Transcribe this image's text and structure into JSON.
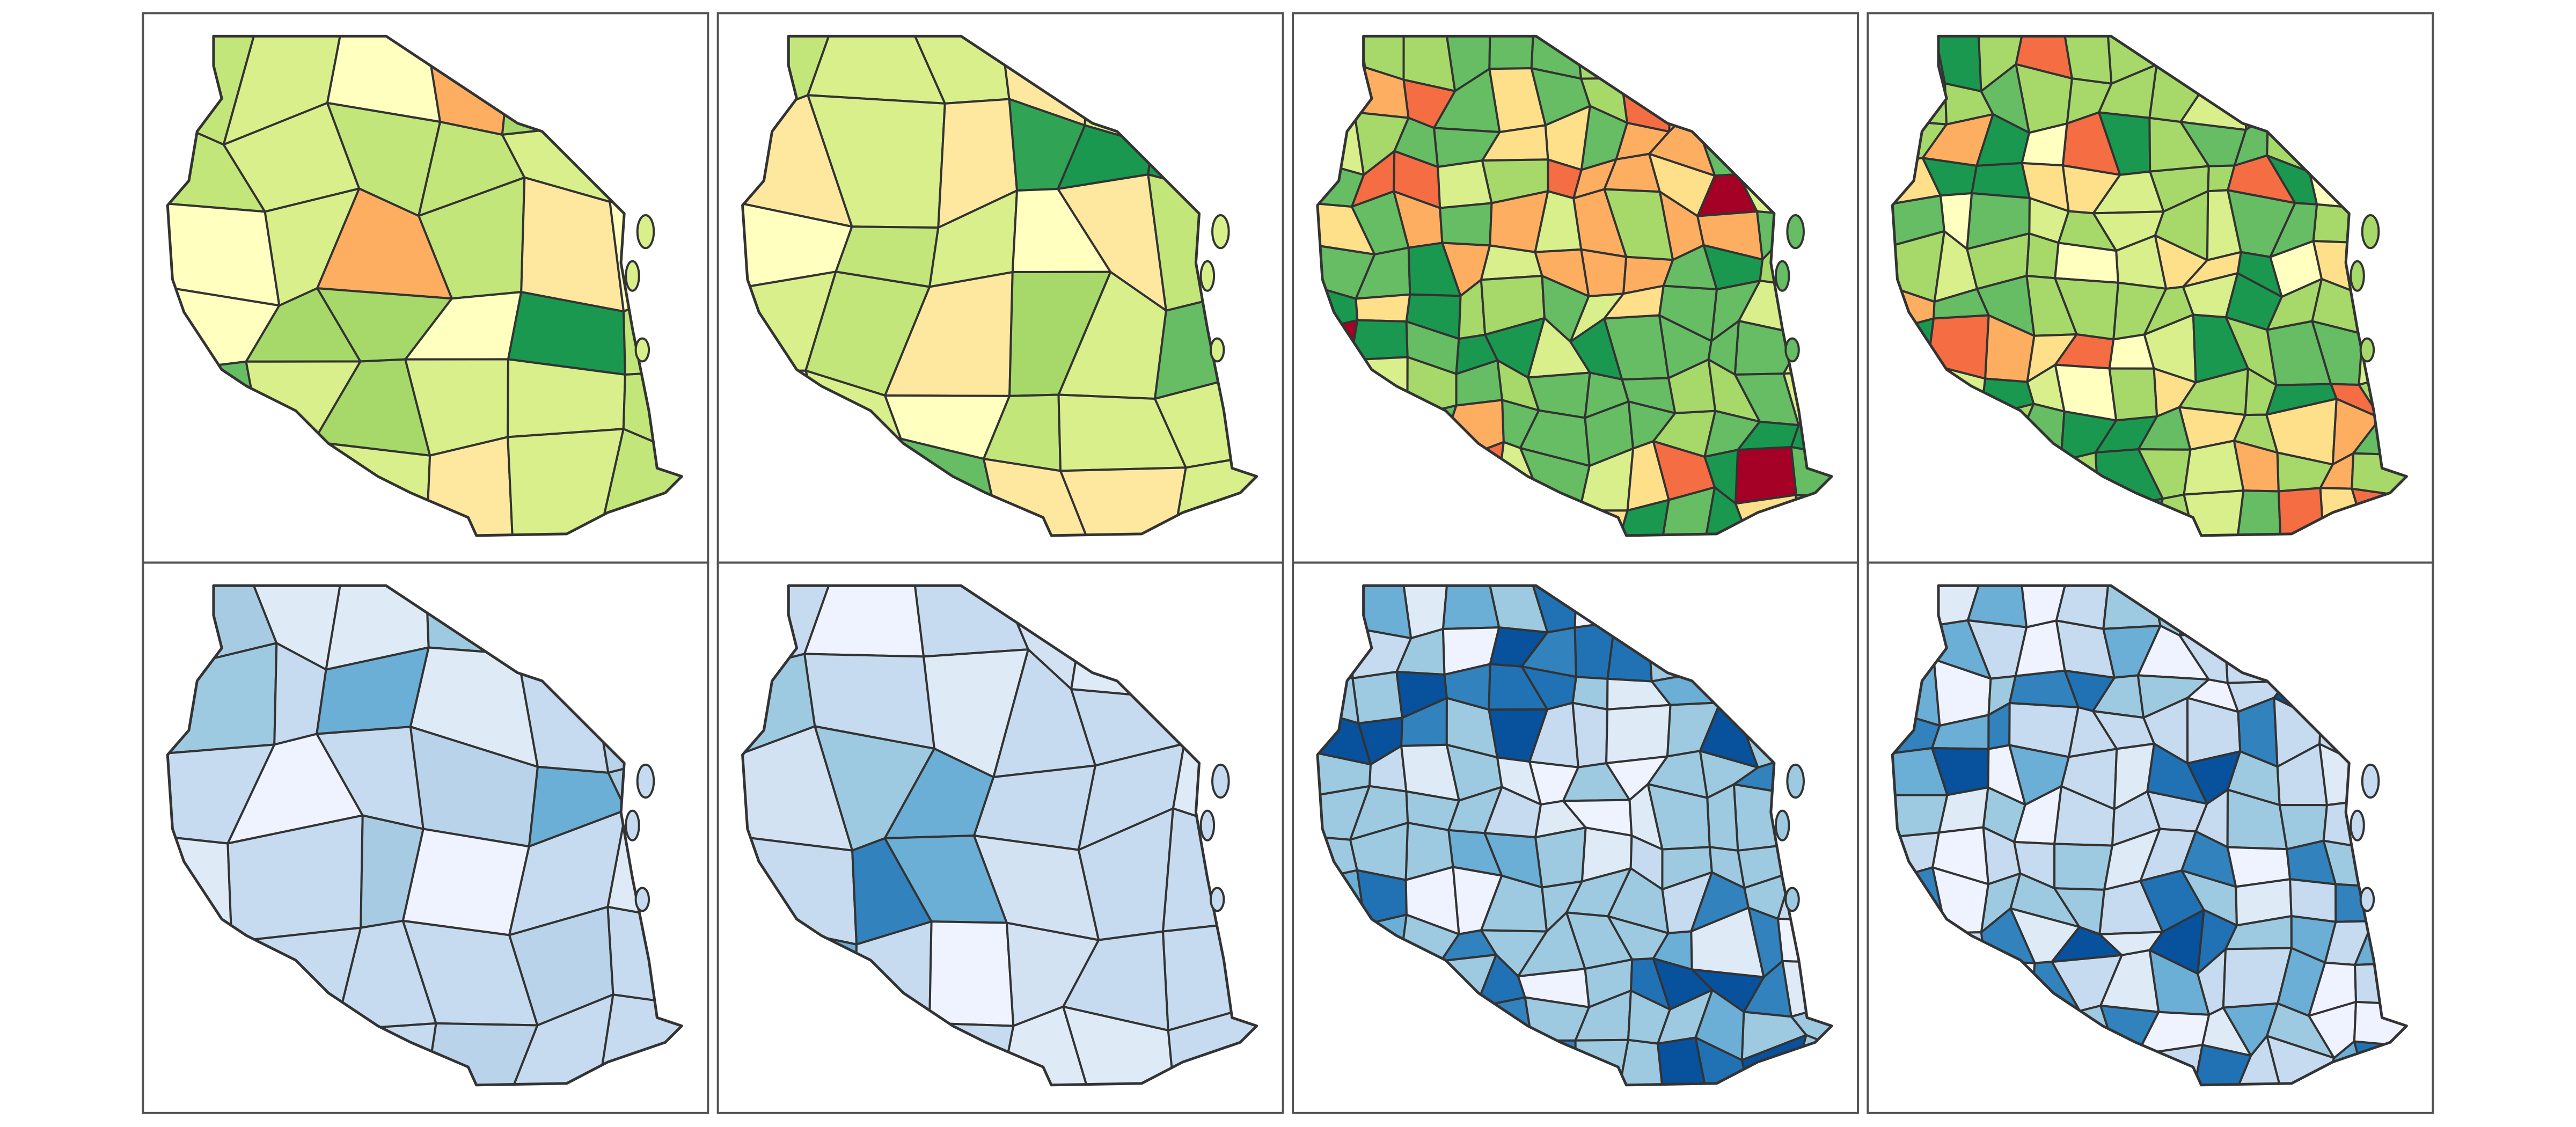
{
  "panels": [
    {
      "colors": [
        "#d9ef8b",
        "#c2e67a",
        "#a6d96a",
        "#ffffbf",
        "#66bd63",
        "#fee8a0",
        "#fdae61",
        "#1a9850"
      ]
    },
    {
      "colors": [
        "#d9ef8b",
        "#c2e67a",
        "#a6d96a",
        "#66bd63",
        "#ffffbf",
        "#31a354",
        "#fee8a0",
        "#1a9850"
      ]
    },
    {
      "colors": [
        "#66bd63",
        "#a6d96a",
        "#1a9850",
        "#d9ef8b",
        "#fee08b",
        "#fdae61",
        "#f46d43",
        "#a50026"
      ]
    },
    {
      "colors": [
        "#a6d96a",
        "#66bd63",
        "#d9ef8b",
        "#1a9850",
        "#ffffbf",
        "#fee08b",
        "#fdae61",
        "#f46d43"
      ]
    },
    {
      "colors": [
        "#c6dbef",
        "#b9d3ea",
        "#9ecae1",
        "#a7cbe3",
        "#deebf7",
        "#eff3ff",
        "#6baed6",
        "#c6dbef"
      ]
    },
    {
      "colors": [
        "#c6dbef",
        "#deebf7",
        "#d2e2f3",
        "#9ecae1",
        "#eff3ff",
        "#6baed6",
        "#3182bd",
        "#c6dbef"
      ]
    },
    {
      "colors": [
        "#9ecae1",
        "#c6dbef",
        "#6baed6",
        "#deebf7",
        "#eff3ff",
        "#3182bd",
        "#2171b5",
        "#08519c"
      ]
    },
    {
      "colors": [
        "#c6dbef",
        "#9ecae1",
        "#deebf7",
        "#6baed6",
        "#eff3ff",
        "#3182bd",
        "#2171b5",
        "#08519c"
      ]
    }
  ]
}
